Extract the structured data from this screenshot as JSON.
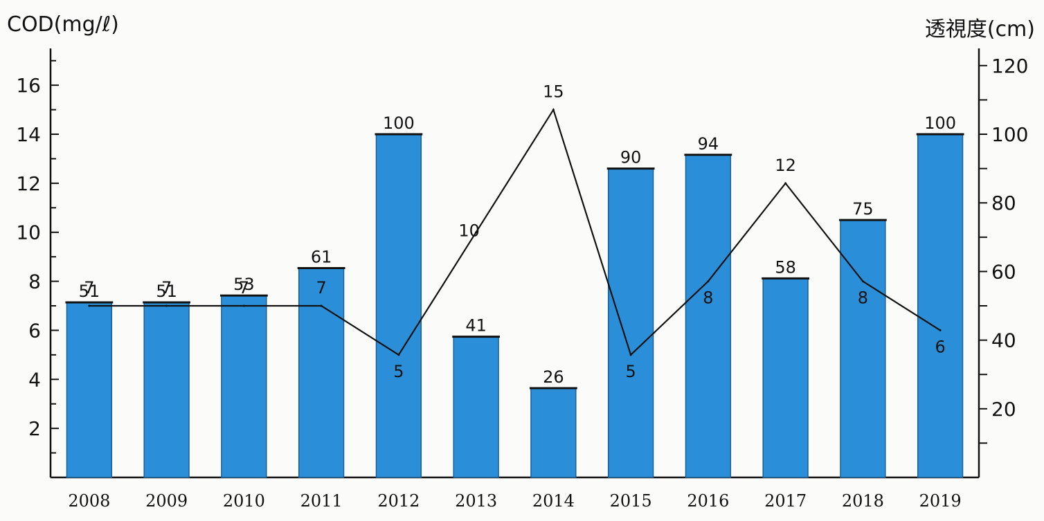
{
  "chart_data": {
    "type": "bar",
    "categories": [
      "2008",
      "2009",
      "2010",
      "2011",
      "2012",
      "2013",
      "2014",
      "2015",
      "2016",
      "2017",
      "2018",
      "2019"
    ],
    "left_axis": {
      "title": "COD(mg/ℓ)",
      "ticks": [
        "2",
        "4",
        "6",
        "8",
        "10",
        "12",
        "14",
        "16"
      ],
      "ylim": [
        0,
        17.5
      ]
    },
    "right_axis": {
      "title": "透視度(cm)",
      "ticks": [
        "20",
        "40",
        "60",
        "80",
        "100",
        "120"
      ],
      "ylim": [
        0,
        125
      ]
    },
    "series": [
      {
        "type": "bar",
        "axis": "right",
        "color": "#2a8fd8",
        "values": [
          51,
          51,
          53,
          61,
          100,
          41,
          26,
          90,
          94,
          58,
          75,
          100
        ],
        "labels": [
          "51",
          "51",
          "53",
          "61",
          "100",
          "41",
          "26",
          "90",
          "94",
          "58",
          "75",
          "100"
        ]
      },
      {
        "type": "line",
        "axis": "left",
        "color": "#111111",
        "values": [
          7,
          7,
          7,
          7,
          5,
          10,
          15,
          5,
          8,
          12,
          8,
          6
        ],
        "labels": [
          "7",
          "7",
          "7",
          "7",
          "5",
          "10",
          "15",
          "5",
          "8",
          "12",
          "8",
          "6"
        ]
      }
    ]
  }
}
